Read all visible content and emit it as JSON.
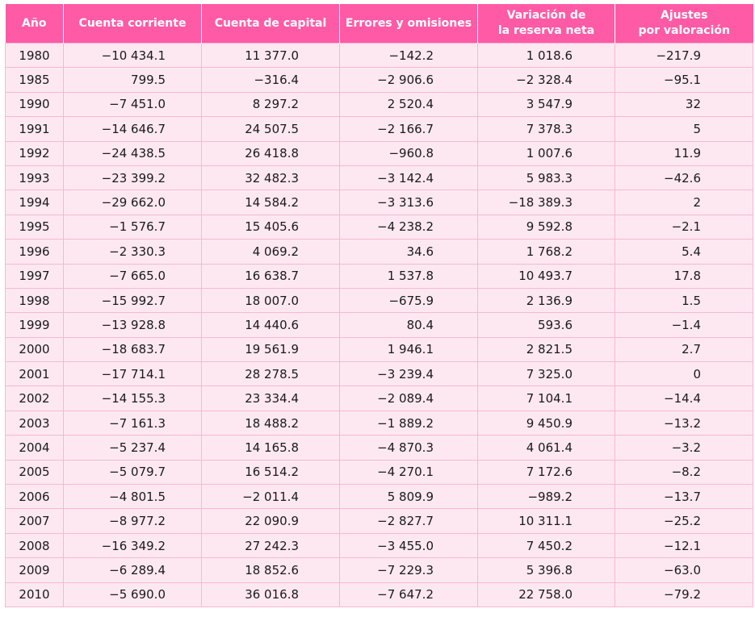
{
  "table": {
    "headers": [
      "Año",
      "Cuenta corriente",
      "Cuenta de capital",
      "Errores y omisiones",
      "Variación de\nla reserva neta",
      "Ajustes\npor valoración"
    ],
    "rows": [
      [
        "1980",
        "−10 434.1",
        "11 377.0",
        "−142.2",
        "1 018.6",
        "−217.9"
      ],
      [
        "1985",
        "799.5",
        "−316.4",
        "−2 906.6",
        "−2 328.4",
        "−95.1"
      ],
      [
        "1990",
        "−7 451.0",
        "8 297.2",
        "2 520.4",
        "3 547.9",
        "32"
      ],
      [
        "1991",
        "−14 646.7",
        "24 507.5",
        "−2 166.7",
        "7 378.3",
        "5"
      ],
      [
        "1992",
        "−24 438.5",
        "26 418.8",
        "−960.8",
        "1 007.6",
        "11.9"
      ],
      [
        "1993",
        "−23 399.2",
        "32 482.3",
        "−3 142.4",
        "5 983.3",
        "−42.6"
      ],
      [
        "1994",
        "−29 662.0",
        "14 584.2",
        "−3 313.6",
        "−18 389.3",
        "2"
      ],
      [
        "1995",
        "−1 576.7",
        "15 405.6",
        "−4 238.2",
        "9 592.8",
        "−2.1"
      ],
      [
        "1996",
        "−2 330.3",
        "4 069.2",
        "34.6",
        "1 768.2",
        "5.4"
      ],
      [
        "1997",
        "−7 665.0",
        "16 638.7",
        "1 537.8",
        "10 493.7",
        "17.8"
      ],
      [
        "1998",
        "−15 992.7",
        "18 007.0",
        "−675.9",
        "2 136.9",
        "1.5"
      ],
      [
        "1999",
        "−13 928.8",
        "14 440.6",
        "80.4",
        "593.6",
        "−1.4"
      ],
      [
        "2000",
        "−18 683.7",
        "19 561.9",
        "1 946.1",
        "2 821.5",
        "2.7"
      ],
      [
        "2001",
        "−17 714.1",
        "28 278.5",
        "−3 239.4",
        "7 325.0",
        "0"
      ],
      [
        "2002",
        "−14 155.3",
        "23 334.4",
        "−2 089.4",
        "7 104.1",
        "−14.4"
      ],
      [
        "2003",
        "−7 161.3",
        "18 488.2",
        "−1 889.2",
        "9 450.9",
        "−13.2"
      ],
      [
        "2004",
        "−5 237.4",
        "14 165.8",
        "−4 870.3",
        "4 061.4",
        "−3.2"
      ],
      [
        "2005",
        "−5 079.7",
        "16 514.2",
        "−4 270.1",
        "7 172.6",
        "−8.2"
      ],
      [
        "2006",
        "−4 801.5",
        "−2 011.4",
        "5 809.9",
        "−989.2",
        "−13.7"
      ],
      [
        "2007",
        "−8 977.2",
        "22 090.9",
        "−2 827.7",
        "10 311.1",
        "−25.2"
      ],
      [
        "2008",
        "−16 349.2",
        "27 242.3",
        "−3 455.0",
        "7 450.2",
        "−12.1"
      ],
      [
        "2009",
        "−6 289.4",
        "18 852.6",
        "−7 229.3",
        "5 396.8",
        "−63.0"
      ],
      [
        "2010",
        "−5 690.0",
        "36 016.8",
        "−7 647.2",
        "22 758.0",
        "−79.2"
      ]
    ]
  },
  "colors": {
    "header_bg": "#ff5aa5",
    "header_text": "#ffffff",
    "row_bg": "#fde8f1",
    "grid": "#f8b7d3"
  }
}
